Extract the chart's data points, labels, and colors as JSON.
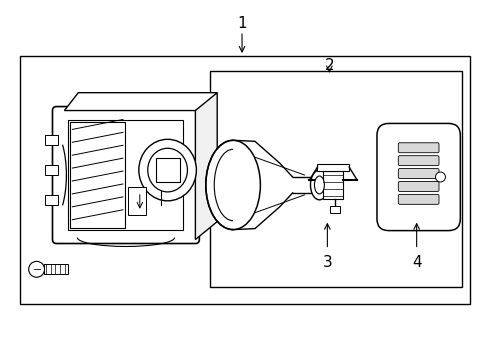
{
  "background_color": "#ffffff",
  "line_color": "#000000",
  "text_color": "#000000",
  "fig_width": 4.9,
  "fig_height": 3.6,
  "dpi": 100,
  "label_1": "1",
  "label_2": "2",
  "label_3": "3",
  "label_4": "4"
}
